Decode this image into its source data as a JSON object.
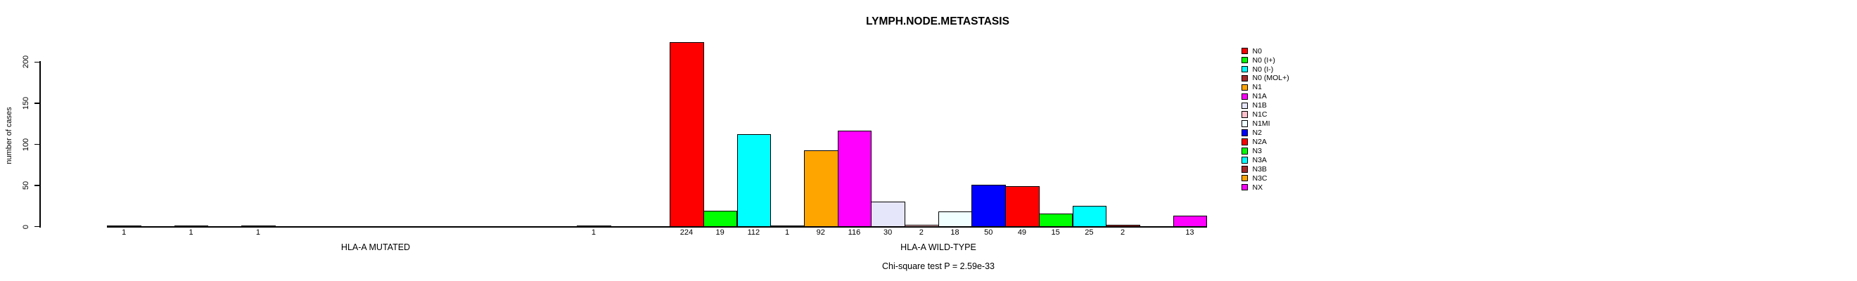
{
  "title": "LYMPH.NODE.METASTASIS",
  "footer_note": "Chi-square test P = 2.59e-33",
  "y_axis": {
    "label": "number of cases",
    "ticks": [
      0,
      50,
      100,
      150,
      200
    ]
  },
  "x_groups": [
    {
      "label": "HLA-A MUTATED"
    },
    {
      "label": "HLA-A WILD-TYPE"
    }
  ],
  "legend": {
    "entries": [
      {
        "label": "N0",
        "color": "#FF0000"
      },
      {
        "label": "N0 (I+)",
        "color": "#00FF00"
      },
      {
        "label": "N0 (I-)",
        "color": "#00FFFF"
      },
      {
        "label": "N0 (MOL+)",
        "color": "#A52A2A"
      },
      {
        "label": "N1",
        "color": "#FFA500"
      },
      {
        "label": "N1A",
        "color": "#FF00FF"
      },
      {
        "label": "N1B",
        "color": "#E6E6FA"
      },
      {
        "label": "N1C",
        "color": "#FFC0CB"
      },
      {
        "label": "N1MI",
        "color": "#F0FFFF"
      },
      {
        "label": "N2",
        "color": "#0000FF"
      },
      {
        "label": "N2A",
        "color": "#FF0000"
      },
      {
        "label": "N3",
        "color": "#00FF00"
      },
      {
        "label": "N3A",
        "color": "#00FFFF"
      },
      {
        "label": "N3B",
        "color": "#A52A2A"
      },
      {
        "label": "N3C",
        "color": "#FFA500"
      },
      {
        "label": "NX",
        "color": "#FF00FF"
      }
    ]
  },
  "chart_data": {
    "type": "bar",
    "title": "LYMPH.NODE.METASTASIS",
    "xlabel": "",
    "ylabel": "number of cases",
    "ylim": [
      0,
      200
    ],
    "yticks": [
      0,
      50,
      100,
      150,
      200
    ],
    "grid": false,
    "legend_position": "right-inside",
    "annotation": "Chi-square test P = 2.59e-33",
    "categories": [
      "N0",
      "N0 (I+)",
      "N0 (I-)",
      "N0 (MOL+)",
      "N1",
      "N1A",
      "N1B",
      "N1C",
      "N1MI",
      "N2",
      "N2A",
      "N3",
      "N3A",
      "N3B",
      "N3C",
      "NX"
    ],
    "category_colors": [
      "#FF0000",
      "#00FF00",
      "#00FFFF",
      "#A52A2A",
      "#FFA500",
      "#FF00FF",
      "#E6E6FA",
      "#FFC0CB",
      "#F0FFFF",
      "#0000FF",
      "#FF0000",
      "#00FF00",
      "#00FFFF",
      "#A52A2A",
      "#FFA500",
      "#FF00FF"
    ],
    "series": [
      {
        "name": "HLA-A MUTATED",
        "values": [
          1,
          0,
          1,
          0,
          1,
          0,
          0,
          0,
          0,
          0,
          0,
          0,
          0,
          0,
          1,
          0
        ]
      },
      {
        "name": "HLA-A WILD-TYPE",
        "values": [
          224,
          19,
          112,
          1,
          92,
          116,
          30,
          2,
          18,
          50,
          49,
          15,
          25,
          2,
          0,
          13
        ]
      }
    ],
    "bar_value_labels": "values shown under every non-zero bar"
  }
}
